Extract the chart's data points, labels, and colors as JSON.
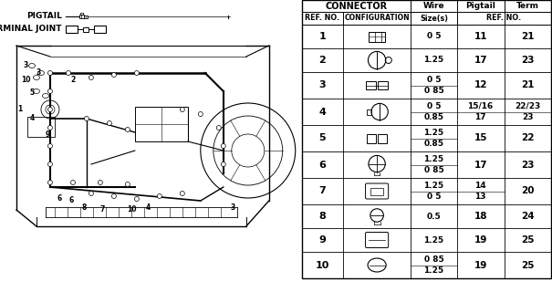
{
  "bg_color": "#f5f5f0",
  "rows": [
    {
      "ref": "1",
      "wire": "0 5",
      "pigtail": "11",
      "term": "21",
      "double": false
    },
    {
      "ref": "2",
      "wire": "1.25",
      "pigtail": "17",
      "term": "23",
      "double": false
    },
    {
      "ref": "3",
      "wire": "0 5\n0 85",
      "pigtail": "12",
      "term": "21",
      "double": true
    },
    {
      "ref": "4",
      "wire": "0 5\n0.85",
      "pigtail": "15/16\n17",
      "term": "22/23\n23",
      "double": true
    },
    {
      "ref": "5",
      "wire": "1.25\n0.85",
      "pigtail": "15",
      "term": "22",
      "double": true
    },
    {
      "ref": "6",
      "wire": "1.25\n0 85",
      "pigtail": "17",
      "term": "23",
      "double": true
    },
    {
      "ref": "7",
      "wire": "1.25\n0 5",
      "pigtail": "14\n13",
      "term": "20",
      "double": true
    },
    {
      "ref": "8",
      "wire": "0.5",
      "pigtail": "18",
      "term": "24",
      "double": false
    },
    {
      "ref": "9",
      "wire": "1.25",
      "pigtail": "19",
      "term": "25",
      "double": false
    },
    {
      "ref": "10",
      "wire": "0 85\n1.25",
      "pigtail": "19",
      "term": "25",
      "double": true
    }
  ]
}
